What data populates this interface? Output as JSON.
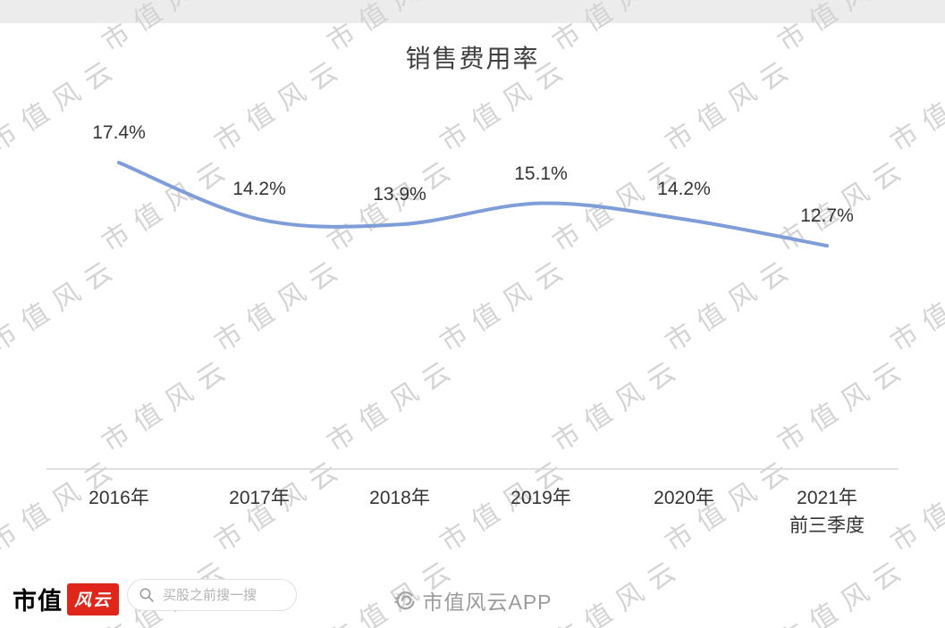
{
  "chart_data": {
    "type": "line",
    "title": "销售费用率",
    "categories": [
      "2016年",
      "2017年",
      "2018年",
      "2019年",
      "2020年",
      "2021年前三季度"
    ],
    "values": [
      17.4,
      14.2,
      13.9,
      15.1,
      14.2,
      12.7
    ],
    "point_labels": [
      "17.4%",
      "14.2%",
      "13.9%",
      "15.1%",
      "14.2%",
      "12.7%"
    ],
    "x_labels": [
      [
        "2016年"
      ],
      [
        "2017年"
      ],
      [
        "2018年"
      ],
      [
        "2019年"
      ],
      [
        "2020年"
      ],
      [
        "2021年",
        "前三季度"
      ]
    ],
    "xlabel": "",
    "ylabel": "",
    "ylim": [
      12,
      18
    ],
    "grid": false,
    "legend": "none",
    "line_color": "#7f9dd8",
    "axis_line_color": "#d6d6d6"
  },
  "watermark": {
    "text": "市值风云",
    "color": "#d4d4d4"
  },
  "footer": {
    "brand_text": "市值",
    "brand_logo_text": "风云",
    "brand_logo_color": "#e0251b",
    "search_placeholder": "买股之前搜一搜",
    "app_watermark": "市值风云APP"
  }
}
